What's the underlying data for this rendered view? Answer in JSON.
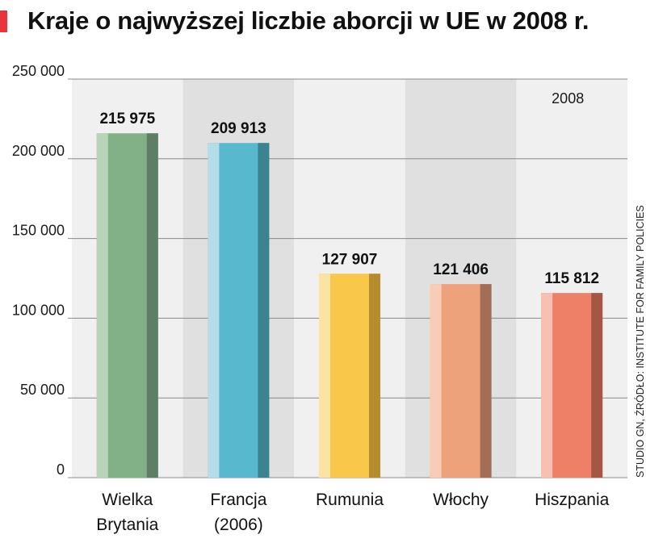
{
  "header": {
    "title": "Kraje o najwyższej liczbie aborcji w UE w 2008 r."
  },
  "credit": "STUDIO GN, ŹRÓDŁO: INSTITUTE FOR FAMILY POLICIES",
  "colors": {
    "accent": "#e8343a",
    "plot_light": "#f0f0f0",
    "plot_dark": "#e0e0e0",
    "grid": "#8a8a8a"
  },
  "chart_data": {
    "type": "bar",
    "title": "Kraje o najwyższej liczbie aborcji w UE w 2008 r.",
    "xlabel": "",
    "ylabel": "",
    "ylim": [
      0,
      250000
    ],
    "yticks": [
      0,
      50000,
      100000,
      150000,
      200000,
      250000
    ],
    "ytick_labels": [
      "0",
      "50 000",
      "100 000",
      "150 000",
      "200 000",
      "250 000"
    ],
    "grid": true,
    "legend": "none",
    "annotation": "2008",
    "categories": [
      {
        "label_lines": [
          "Wielka",
          "Brytania"
        ]
      },
      {
        "label_lines": [
          "Francja",
          "(2006)"
        ]
      },
      {
        "label_lines": [
          "Rumunia"
        ]
      },
      {
        "label_lines": [
          "Włochy"
        ]
      },
      {
        "label_lines": [
          "Hiszpania"
        ]
      }
    ],
    "values": [
      215975,
      209913,
      127907,
      121406,
      115812
    ],
    "value_labels": [
      "215 975",
      "209 913",
      "127 907",
      "121 406",
      "115 812"
    ],
    "bar_colors": [
      {
        "light": "#b7d3b8",
        "main": "#82b187",
        "dark": "#5e7f64"
      },
      {
        "light": "#b3dde8",
        "main": "#58b8ce",
        "dark": "#3c8390"
      },
      {
        "light": "#fde3a3",
        "main": "#f9c84a",
        "dark": "#b58d2f"
      },
      {
        "light": "#f8cdb6",
        "main": "#eda27c",
        "dark": "#a36e58"
      },
      {
        "light": "#f8c0b1",
        "main": "#ef8068",
        "dark": "#a55645"
      }
    ]
  }
}
